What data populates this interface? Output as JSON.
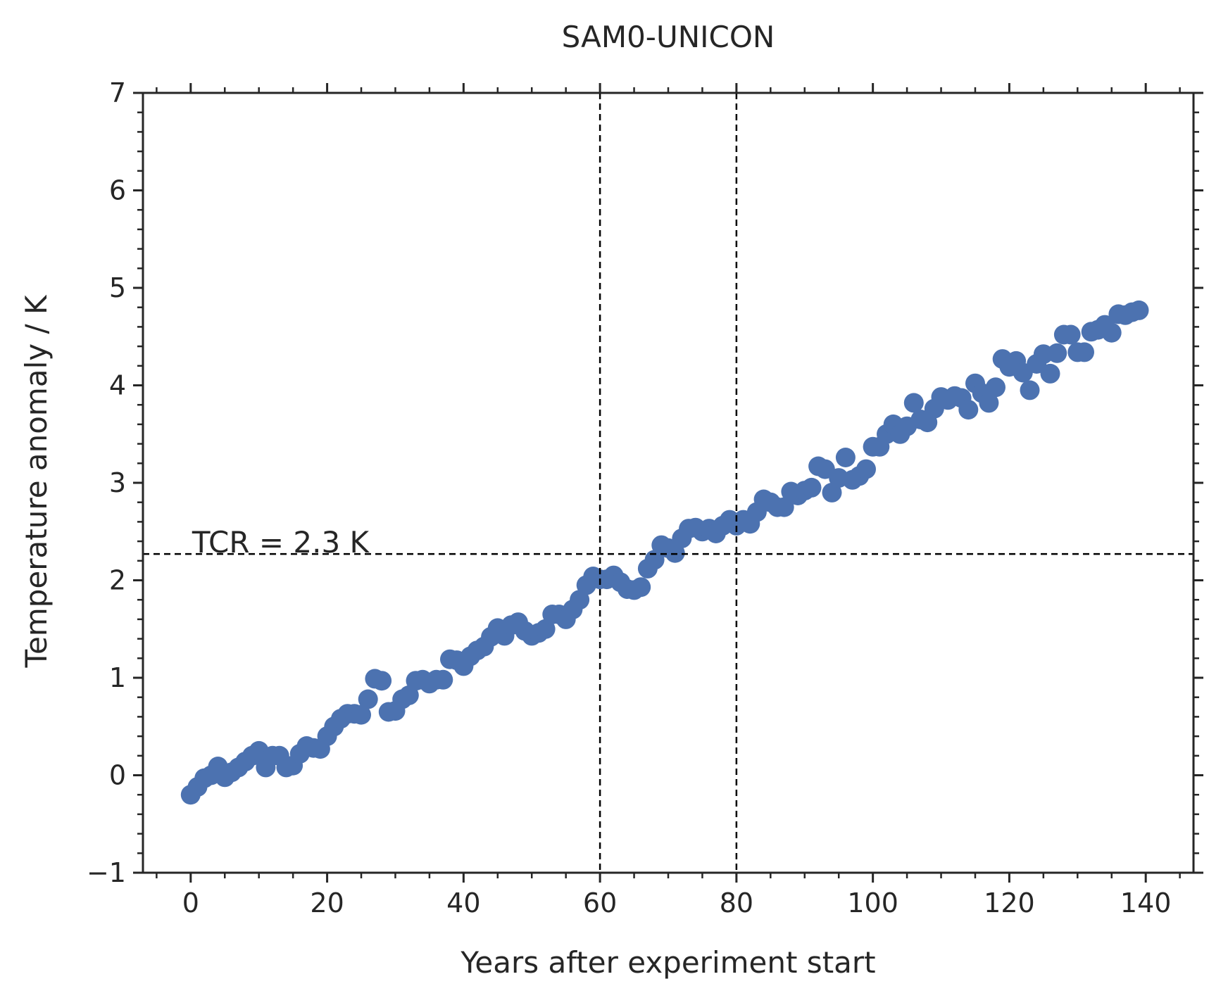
{
  "chart_data": {
    "type": "scatter",
    "title": "SAM0-UNICON",
    "xlabel": "Years after experiment start",
    "ylabel": "Temperature anomaly / K",
    "xlim": [
      -7,
      147
    ],
    "ylim": [
      -1,
      7
    ],
    "xticks": [
      0,
      20,
      40,
      60,
      80,
      100,
      120,
      140
    ],
    "yticks": [
      -1,
      0,
      1,
      2,
      3,
      4,
      5,
      6,
      7
    ],
    "ytick_labels": [
      "−1",
      "0",
      "1",
      "2",
      "3",
      "4",
      "5",
      "6",
      "7"
    ],
    "x_minor_step": 5,
    "y_minor_step": 0.2,
    "grid": false,
    "marker_color": "#4c72b0",
    "reference_lines": {
      "vertical": [
        60,
        80
      ],
      "horizontal": [
        2.27
      ],
      "style": "dashed",
      "color": "#000000"
    },
    "annotation": {
      "text": "TCR = 2.3 K",
      "x": 0,
      "y": 2.3
    },
    "series": [
      {
        "x": [
          0,
          1,
          2,
          3,
          4,
          5,
          6,
          7,
          8,
          9,
          10,
          11,
          12,
          13,
          14,
          15,
          16,
          17,
          18,
          19,
          20,
          21,
          22,
          23,
          24,
          25,
          26,
          27,
          28,
          29,
          30,
          31,
          32,
          33,
          34,
          35,
          36,
          37,
          38,
          39,
          40,
          41,
          42,
          43,
          44,
          45,
          46,
          47,
          48,
          49,
          50,
          51,
          52,
          53,
          54,
          55,
          56,
          57,
          58,
          59,
          60,
          61,
          62,
          63,
          64,
          65,
          66,
          67,
          68,
          69,
          70,
          71,
          72,
          73,
          74,
          75,
          76,
          77,
          78,
          79,
          80,
          81,
          82,
          83,
          84,
          85,
          86,
          87,
          88,
          89,
          90,
          91,
          92,
          93,
          94,
          95,
          96,
          97,
          98,
          99,
          100,
          101,
          102,
          103,
          104,
          105,
          106,
          107,
          108,
          109,
          110,
          111,
          112,
          113,
          114,
          115,
          116,
          117,
          118,
          119,
          120,
          121,
          122,
          123,
          124,
          125,
          126,
          127,
          128,
          129,
          130,
          131,
          132,
          133,
          134,
          135,
          136,
          137,
          138,
          139
        ],
        "y": [
          -0.2,
          -0.12,
          -0.03,
          0.0,
          0.09,
          -0.02,
          0.03,
          0.08,
          0.14,
          0.2,
          0.25,
          0.08,
          0.2,
          0.2,
          0.08,
          0.1,
          0.22,
          0.3,
          0.28,
          0.27,
          0.4,
          0.5,
          0.58,
          0.63,
          0.63,
          0.62,
          0.78,
          0.99,
          0.97,
          0.65,
          0.66,
          0.78,
          0.82,
          0.97,
          0.98,
          0.94,
          0.98,
          0.98,
          1.19,
          1.18,
          1.12,
          1.22,
          1.28,
          1.32,
          1.42,
          1.51,
          1.43,
          1.54,
          1.57,
          1.48,
          1.43,
          1.46,
          1.5,
          1.65,
          1.65,
          1.6,
          1.7,
          1.8,
          1.95,
          2.04,
          2.01,
          2.01,
          2.05,
          1.98,
          1.91,
          1.9,
          1.93,
          2.12,
          2.21,
          2.36,
          2.33,
          2.28,
          2.43,
          2.53,
          2.54,
          2.5,
          2.53,
          2.48,
          2.56,
          2.62,
          2.56,
          2.62,
          2.58,
          2.7,
          2.83,
          2.8,
          2.75,
          2.75,
          2.91,
          2.87,
          2.92,
          2.95,
          3.17,
          3.14,
          2.9,
          3.05,
          3.26,
          3.03,
          3.07,
          3.14,
          3.37,
          3.37,
          3.5,
          3.6,
          3.5,
          3.58,
          3.82,
          3.65,
          3.62,
          3.76,
          3.88,
          3.85,
          3.89,
          3.87,
          3.75,
          4.02,
          3.92,
          3.82,
          3.98,
          4.27,
          4.19,
          4.25,
          4.13,
          3.95,
          4.22,
          4.32,
          4.12,
          4.33,
          4.52,
          4.52,
          4.34,
          4.34,
          4.55,
          4.57,
          4.62,
          4.54,
          4.73,
          4.72,
          4.75,
          4.77
        ]
      }
    ]
  }
}
